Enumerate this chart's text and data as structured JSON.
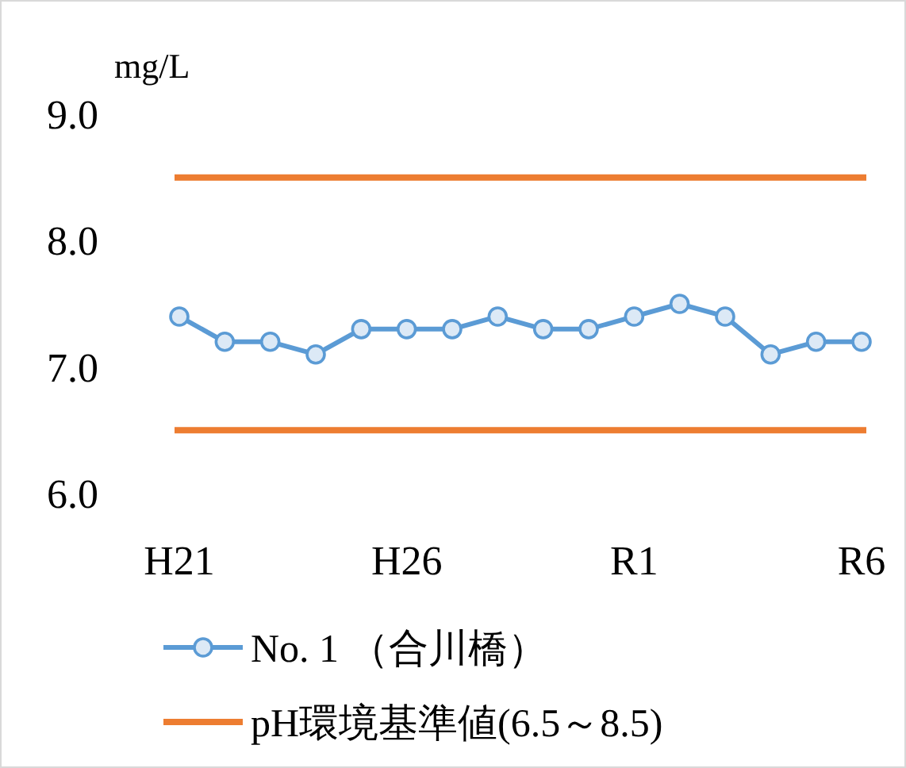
{
  "chart_data": {
    "type": "line",
    "ylabel": "mg/L",
    "categories": [
      "H21",
      null,
      null,
      null,
      null,
      "H26",
      null,
      null,
      null,
      null,
      "R1",
      null,
      null,
      null,
      null,
      "R6"
    ],
    "series": [
      {
        "name": "No. 1 （合川橋）",
        "color": "#5b9bd5",
        "values": [
          7.4,
          7.2,
          7.2,
          7.1,
          7.3,
          7.3,
          7.3,
          7.4,
          7.3,
          7.3,
          7.4,
          7.5,
          7.4,
          7.1,
          7.2,
          7.2
        ]
      }
    ],
    "ref_lines": [
      {
        "axis": "y",
        "value": 6.5,
        "label": "pH環境基準値(6.5～8.5)",
        "color": "#ed7d31"
      },
      {
        "axis": "y",
        "value": 8.5,
        "color": "#ed7d31"
      }
    ],
    "ylim": [
      6.0,
      9.0
    ],
    "yticks": [
      {
        "value": 6.0,
        "label": "6.0"
      },
      {
        "value": 7.0,
        "label": "7.0"
      },
      {
        "value": 8.0,
        "label": "8.0"
      },
      {
        "value": 9.0,
        "label": "9.0"
      }
    ],
    "marker": "circle",
    "grid": false,
    "legend": "bottom"
  }
}
